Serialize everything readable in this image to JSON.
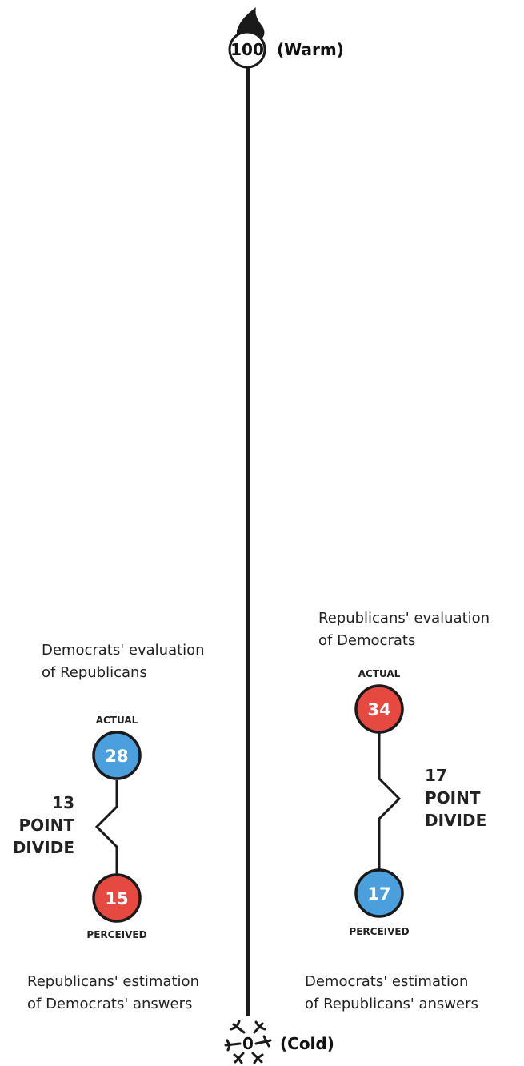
{
  "colors": {
    "democrat_blue": "#4a9fdc",
    "republican_red": "#e5493f",
    "ink": "#1a1a1a"
  },
  "scale": {
    "top_value": "100",
    "top_label": "(Warm)",
    "top_icon": "flame-icon",
    "bottom_value": "0",
    "bottom_label": "(Cold)",
    "bottom_icon": "snowflake-icon"
  },
  "left_group": {
    "title_line1": "Democrats' evaluation",
    "title_line2": "of Republicans",
    "actual_label": "ACTUAL",
    "perceived_label": "PERCEIVED",
    "divide_line1": "13",
    "divide_line2": "POINT",
    "divide_line3": "DIVIDE",
    "footer_line1": "Republicans' estimation",
    "footer_line2": "of Democrats' answers"
  },
  "right_group": {
    "title_line1": "Republicans' evaluation",
    "title_line2": "of Democrats",
    "actual_label": "ACTUAL",
    "perceived_label": "PERCEIVED",
    "divide_line1": "17",
    "divide_line2": "POINT",
    "divide_line3": "DIVIDE",
    "footer_line1": "Democrats' estimation",
    "footer_line2": "of Republicans' answers"
  },
  "chart_data": {
    "type": "scatter",
    "yrange": [
      0,
      100
    ],
    "series": [
      {
        "name": "Democrats' evaluation of Republicans",
        "actual": 28,
        "perceived": 15,
        "gap": 13,
        "actual_color": "#4a9fdc",
        "perceived_color": "#e5493f"
      },
      {
        "name": "Republicans' evaluation of Democrats",
        "actual": 34,
        "perceived": 17,
        "gap": 17,
        "actual_color": "#e5493f",
        "perceived_color": "#4a9fdc"
      }
    ]
  }
}
